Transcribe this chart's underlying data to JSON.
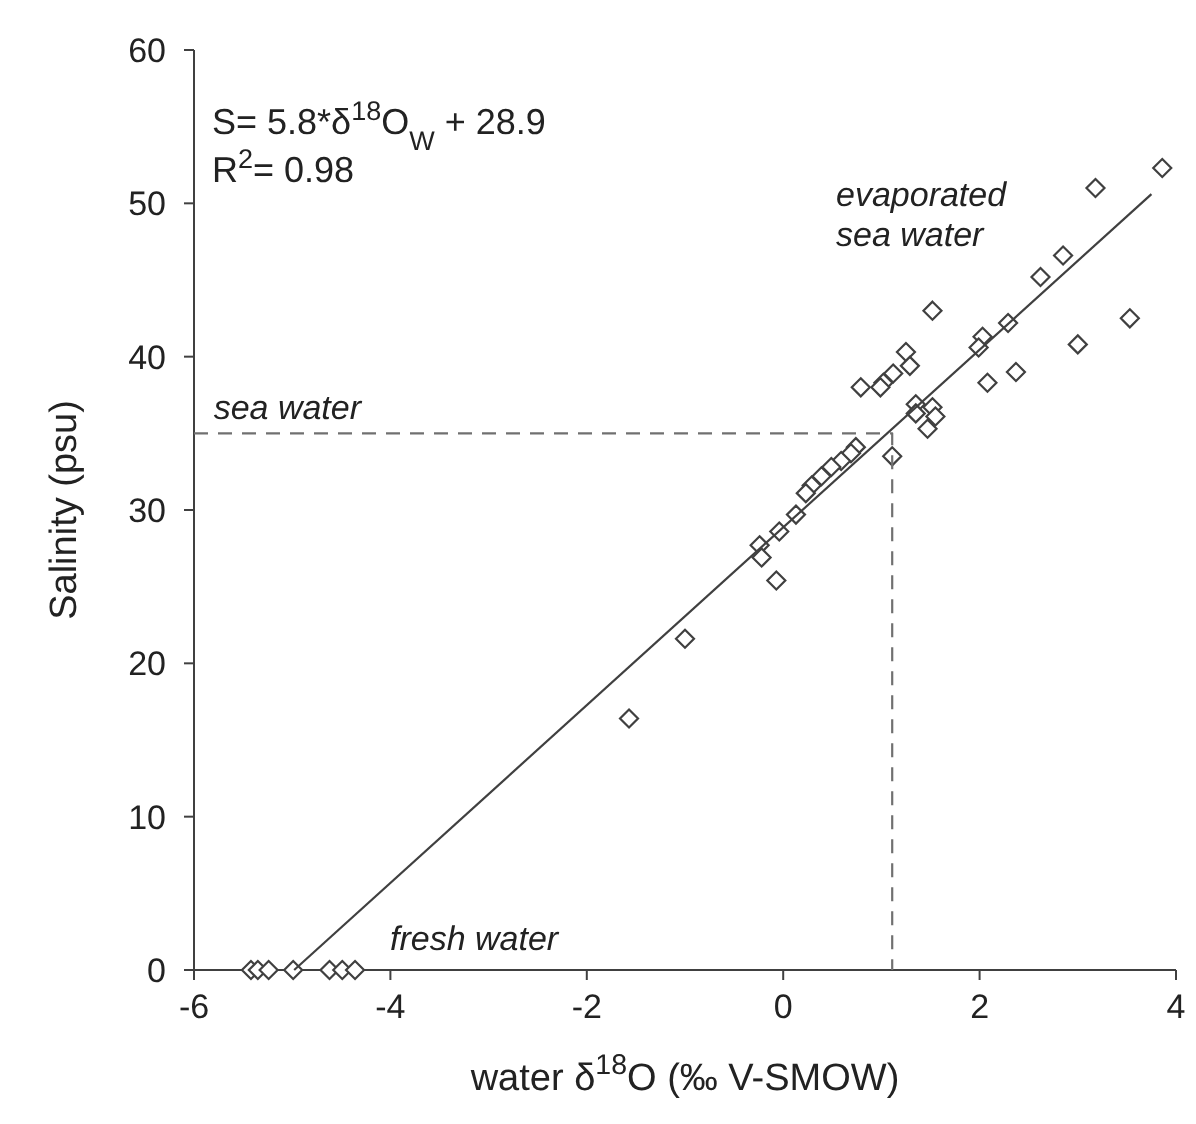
{
  "chart_data": {
    "type": "scatter",
    "xlabel": "water δ$^{18}$O (‰ V-SMOW)",
    "ylabel": "Salinity (psu)",
    "xlim": [
      -6,
      4
    ],
    "xticks": [
      -6,
      -4,
      -2,
      0,
      2,
      4
    ],
    "ylim": [
      0,
      60
    ],
    "yticks": [
      0,
      10,
      20,
      30,
      40,
      50,
      60
    ],
    "grid": false,
    "annotations": [
      "S= 5.8*δ$^{18}$O$_{W}$ + 28.9",
      "R$^{2}$= 0.98",
      "evaporated\nsea water",
      {
        "text": "sea water",
        "x": -5.8,
        "y": 35
      },
      "fresh water"
    ],
    "series": [
      {
        "type": "scatter",
        "marker": "diamond",
        "color": "#404040",
        "x": [
          3.86,
          3.18,
          2.85,
          2.62,
          3.53,
          1.52,
          2.29,
          3.0,
          2.03,
          1.99,
          2.37,
          2.08,
          1.25,
          1.29,
          1.12,
          1.02,
          0.79,
          0.99,
          1.35,
          1.52,
          1.35,
          1.55,
          1.47,
          1.11,
          0.74,
          0.69,
          0.59,
          0.49,
          0.39,
          0.29,
          0.23,
          0.13,
          -0.04,
          -0.24,
          -0.22,
          -0.07,
          -1.0,
          -1.57,
          -5.42,
          -5.35,
          -5.24,
          -4.99,
          -4.62,
          -4.49,
          -4.36
        ],
        "values": [
          52.3,
          51.0,
          46.6,
          45.2,
          42.5,
          43.0,
          42.2,
          40.8,
          41.3,
          40.6,
          39.0,
          38.3,
          40.3,
          39.4,
          38.9,
          38.3,
          38.0,
          38.0,
          36.9,
          36.7,
          36.3,
          36.1,
          35.3,
          33.5,
          34.1,
          33.7,
          33.2,
          32.8,
          32.2,
          31.6,
          31.1,
          29.7,
          28.6,
          27.7,
          26.9,
          25.4,
          21.6,
          16.4,
          0,
          0,
          0,
          0,
          0,
          0,
          0
        ]
      },
      {
        "type": "line",
        "marker": "none",
        "line_style": "solid",
        "color": "#404040",
        "x": [
          -4.98,
          3.75
        ],
        "values": [
          0,
          50.6
        ]
      },
      {
        "type": "line",
        "marker": "none",
        "line_style": "dashed",
        "color": "#707070",
        "x": [
          -6,
          1.11,
          1.11
        ],
        "values": [
          35,
          35,
          0
        ]
      }
    ]
  }
}
